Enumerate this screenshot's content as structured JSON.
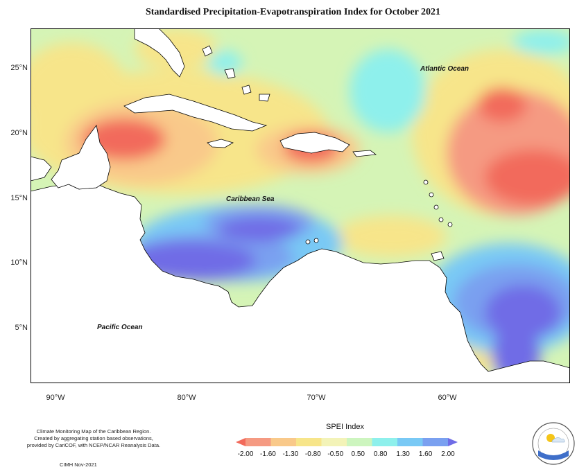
{
  "title": "Standardised Precipitation-Evapotranspiration Index for October 2021",
  "map": {
    "latitude_labels": [
      "25°N",
      "20°N",
      "15°N",
      "10°N",
      "5°N"
    ],
    "longitude_labels": [
      "90°W",
      "80°W",
      "70°W",
      "60°W"
    ],
    "ocean_labels": {
      "atlantic": "Atlantic Ocean",
      "caribbean": "Caribbean Sea",
      "pacific": "Pacific Ocean"
    }
  },
  "credits": {
    "line1": "Climate Monitoring Map of the Caribbean Region.",
    "line2": "Created by aggregating station based observations,",
    "line3": "provided by CariCOF, with NCEP/NCAR Reanalysis Data.",
    "date": "CIMH Nov-2021"
  },
  "legend": {
    "title": "SPEI Index",
    "ticks": [
      "-2.00",
      "-1.60",
      "-1.30",
      "-0.80",
      "-0.50",
      "0.50",
      "0.80",
      "1.30",
      "1.60",
      "2.00"
    ],
    "colors": [
      "#f26a5b",
      "#f59a82",
      "#f9c98a",
      "#f7e58a",
      "#f3f3b8",
      "#cdf5bf",
      "#8ef0ec",
      "#79c9f5",
      "#7aa0f0",
      "#6f6ce6"
    ]
  },
  "logo": {
    "name": "CIMH",
    "icon": "cimh-logo-icon"
  }
}
